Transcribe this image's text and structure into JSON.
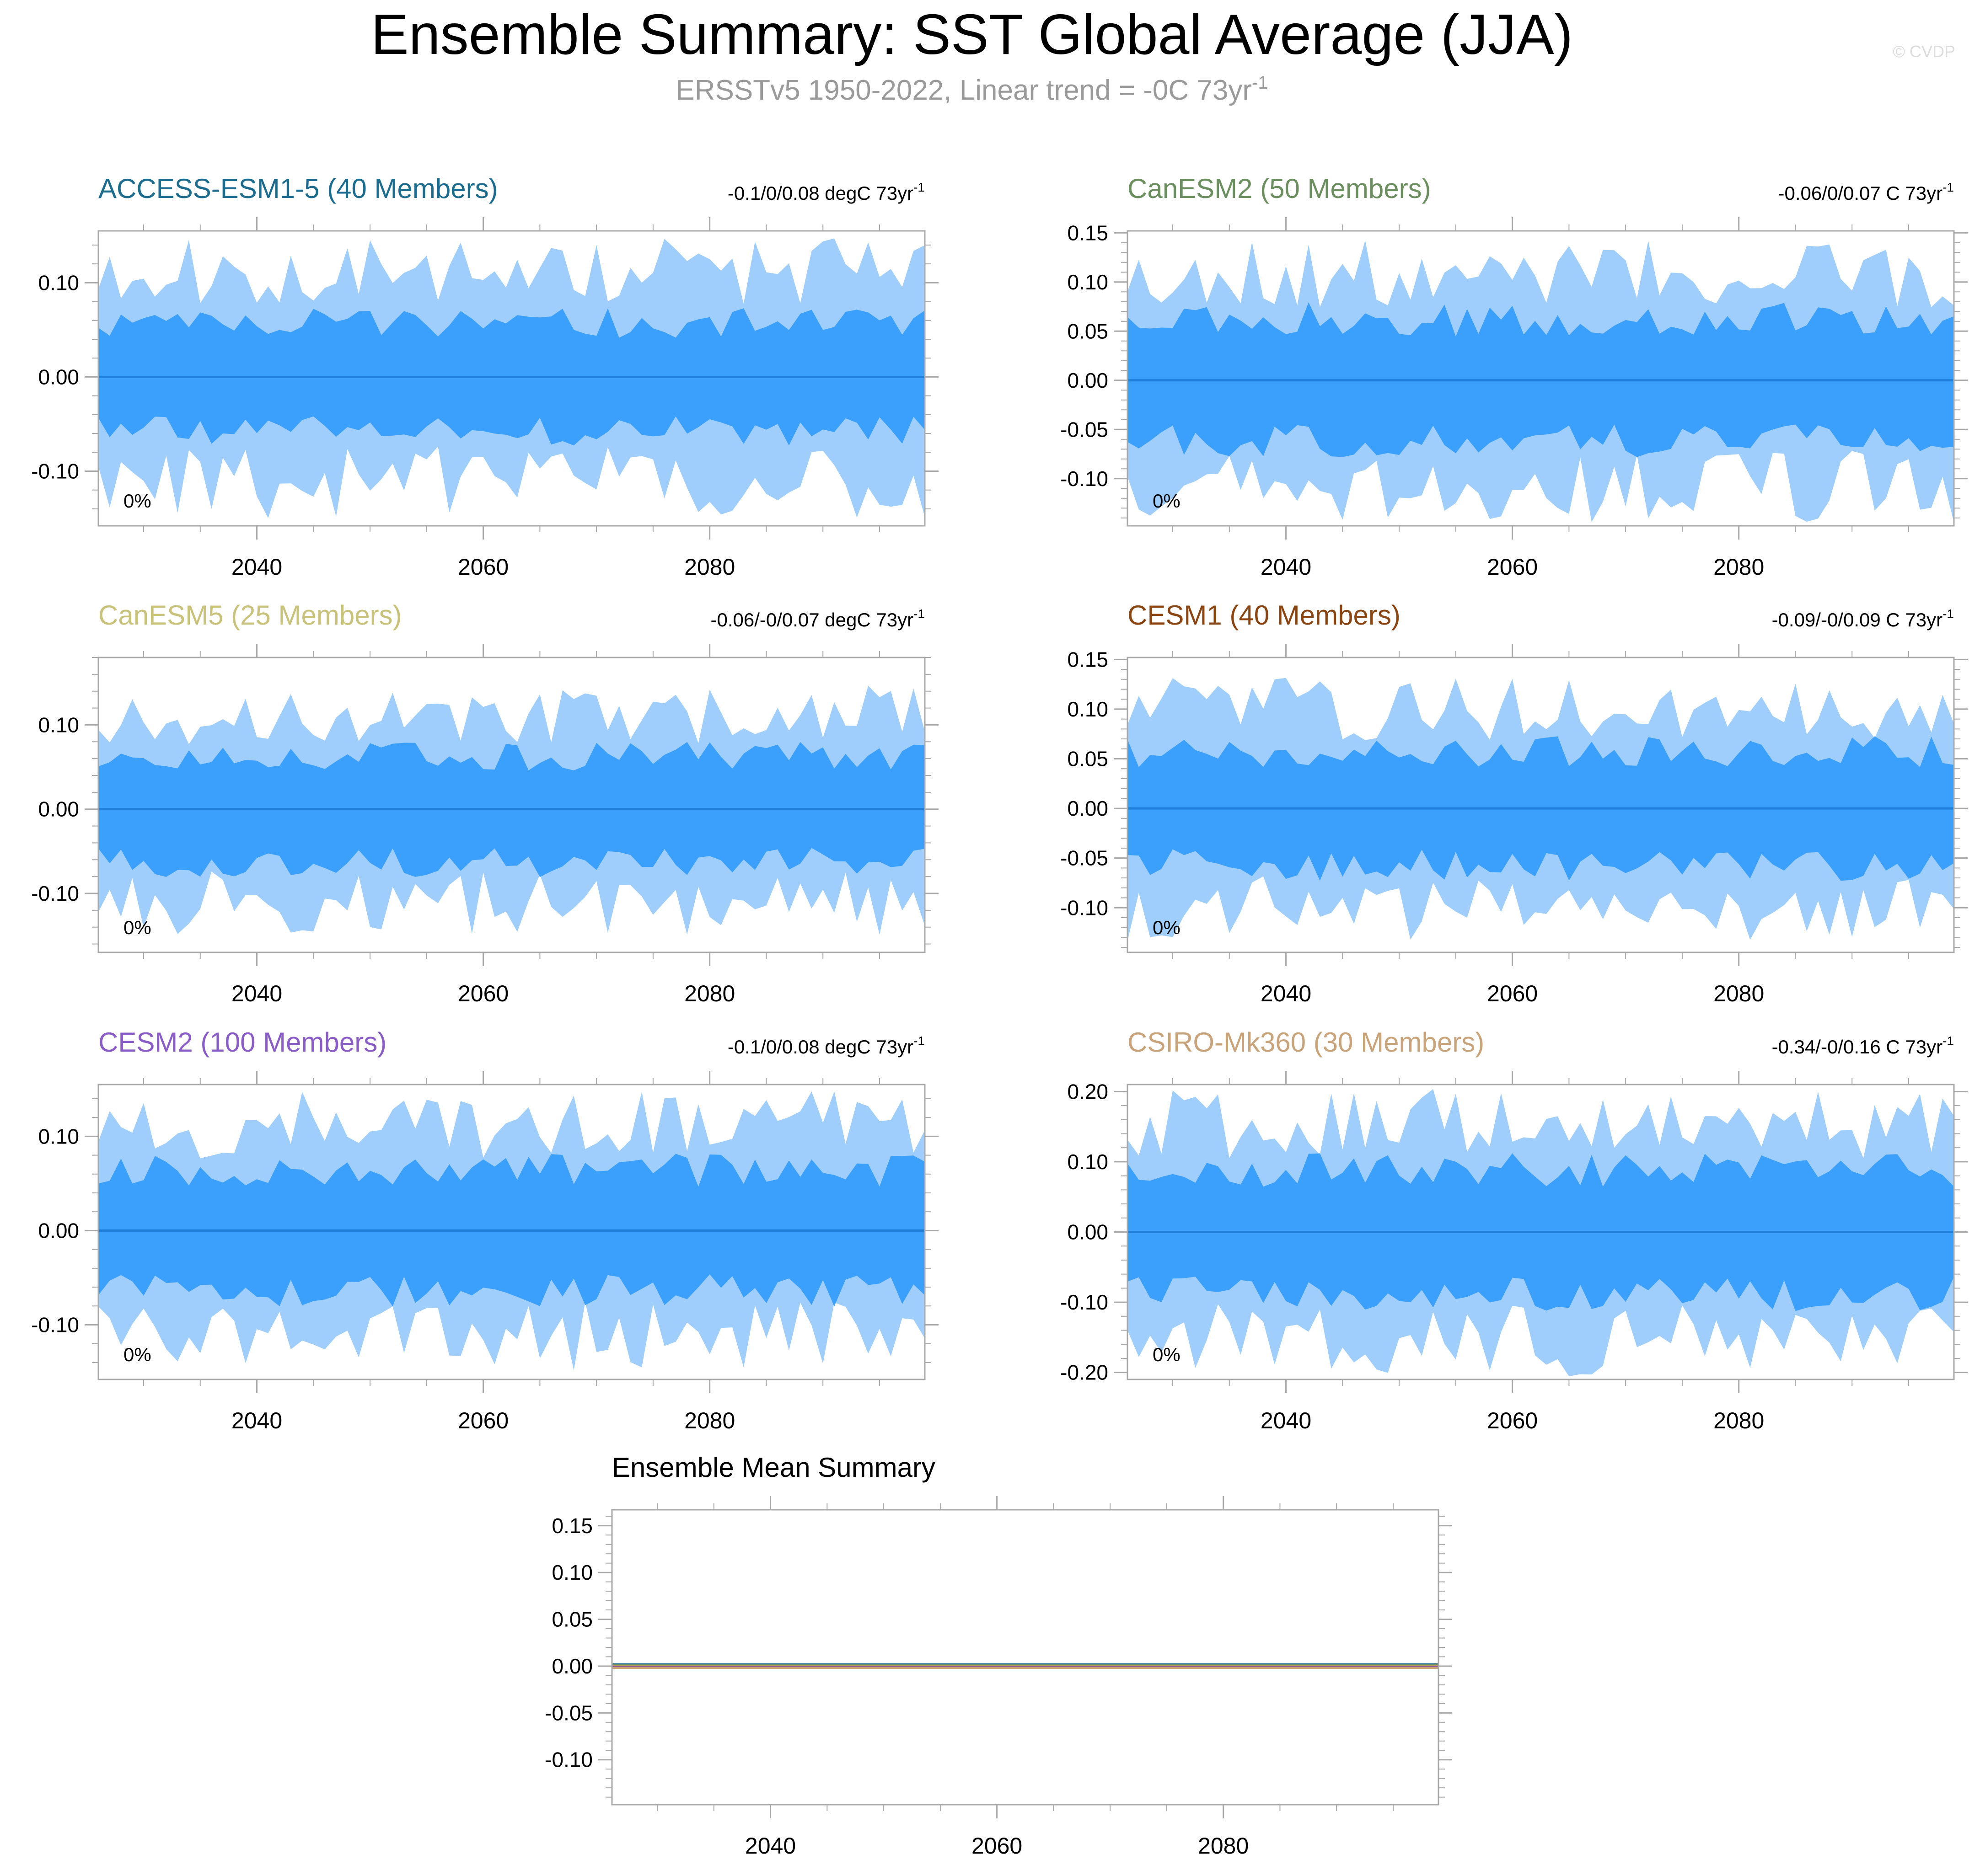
{
  "title": "Ensemble Summary: SST Global Average (JJA)",
  "subtitle_main": "ERSSTv5 1950-2022, Linear trend = -0C 73yr",
  "subtitle_sup": "-1",
  "watermark": "© CVDP",
  "colors": {
    "band_outer": "#9fcefc",
    "band_inner": "#3ba0fb",
    "mean_line": "#1f7fd8",
    "frame": "#a8a8a8",
    "text": "#000000"
  },
  "chart_data": [
    {
      "type": "area",
      "title": "ACCESS-ESM1-5 (40 Members)",
      "title_color": "#1b6c8e",
      "trend_text": "-0.1/0/0.08 degC 73yr",
      "trend_sup": "-1",
      "pct_label": "0%",
      "x_range": [
        2026,
        2099
      ],
      "ylim": [
        -0.158,
        0.155
      ],
      "yticks": [
        -0.1,
        0.0,
        0.1
      ],
      "ytick_labels": [
        "-0.10",
        "0.00",
        "0.10"
      ],
      "xticks": [
        2040,
        2060,
        2080
      ],
      "xtick_labels": [
        "2040",
        "2060",
        "2080"
      ],
      "mean_value": 0.0,
      "outer_amp": 0.112,
      "inner_amp": 0.057,
      "seed": 11
    },
    {
      "type": "area",
      "title": "CanESM2 (50 Members)",
      "title_color": "#6b8f5e",
      "trend_text": "-0.06/0/0.07 C 73yr",
      "trend_sup": "-1",
      "pct_label": "0%",
      "x_range": [
        2026,
        2099
      ],
      "ylim": [
        -0.148,
        0.152
      ],
      "yticks": [
        -0.1,
        -0.05,
        0.0,
        0.05,
        0.1,
        0.15
      ],
      "ytick_labels": [
        "-0.10",
        "-0.05",
        "0.00",
        "0.05",
        "0.10",
        "0.15"
      ],
      "xticks": [
        2040,
        2060,
        2080
      ],
      "xtick_labels": [
        "2040",
        "2060",
        "2080"
      ],
      "mean_value": 0.0,
      "outer_amp": 0.108,
      "inner_amp": 0.062,
      "seed": 23
    },
    {
      "type": "area",
      "title": "CanESM5 (25 Members)",
      "title_color": "#c9c27a",
      "trend_text": "-0.06/-0/0.07 degC 73yr",
      "trend_sup": "-1",
      "pct_label": "0%",
      "x_range": [
        2026,
        2099
      ],
      "ylim": [
        -0.17,
        0.18
      ],
      "yticks": [
        -0.1,
        0.0,
        0.1
      ],
      "ytick_labels": [
        "-0.10",
        "0.00",
        "0.10"
      ],
      "xticks": [
        2040,
        2060,
        2080
      ],
      "xtick_labels": [
        "2040",
        "2060",
        "2080"
      ],
      "mean_value": 0.0,
      "outer_amp": 0.112,
      "inner_amp": 0.063,
      "seed": 37
    },
    {
      "type": "area",
      "title": "CESM1 (40 Members)",
      "title_color": "#8b4513",
      "trend_text": "-0.09/-0/0.09 C 73yr",
      "trend_sup": "-1",
      "pct_label": "0%",
      "x_range": [
        2026,
        2099
      ],
      "ylim": [
        -0.145,
        0.152
      ],
      "yticks": [
        -0.1,
        -0.05,
        0.0,
        0.05,
        0.1,
        0.15
      ],
      "ytick_labels": [
        "-0.10",
        "-0.05",
        "0.00",
        "0.05",
        "0.10",
        "0.15"
      ],
      "xticks": [
        2040,
        2060,
        2080
      ],
      "xtick_labels": [
        "2040",
        "2060",
        "2080"
      ],
      "mean_value": 0.0,
      "outer_amp": 0.1,
      "inner_amp": 0.057,
      "seed": 41
    },
    {
      "type": "area",
      "title": "CESM2 (100 Members)",
      "title_color": "#8a5cc8",
      "trend_text": "-0.1/0/0.08 degC 73yr",
      "trend_sup": "-1",
      "pct_label": "0%",
      "x_range": [
        2026,
        2099
      ],
      "ylim": [
        -0.158,
        0.155
      ],
      "yticks": [
        -0.1,
        0.0,
        0.1
      ],
      "ytick_labels": [
        "-0.10",
        "0.00",
        "0.10"
      ],
      "xticks": [
        2040,
        2060,
        2080
      ],
      "xtick_labels": [
        "2040",
        "2060",
        "2080"
      ],
      "mean_value": 0.0,
      "outer_amp": 0.112,
      "inner_amp": 0.064,
      "seed": 53
    },
    {
      "type": "area",
      "title": "CSIRO-Mk360 (30 Members)",
      "title_color": "#c9a47a",
      "trend_text": "-0.34/-0/0.16 C 73yr",
      "trend_sup": "-1",
      "pct_label": "0%",
      "x_range": [
        2026,
        2099
      ],
      "ylim": [
        -0.21,
        0.21
      ],
      "yticks": [
        -0.2,
        -0.1,
        0.0,
        0.1,
        0.2
      ],
      "ytick_labels": [
        "-0.20",
        "-0.10",
        "0.00",
        "0.10",
        "0.20"
      ],
      "xticks": [
        2040,
        2060,
        2080
      ],
      "xtick_labels": [
        "2040",
        "2060",
        "2080"
      ],
      "mean_value": 0.0,
      "outer_amp": 0.155,
      "inner_amp": 0.088,
      "seed": 67
    },
    {
      "type": "line",
      "title": "Ensemble Mean Summary",
      "title_color": "#000000",
      "x_range": [
        2026,
        2099
      ],
      "ylim": [
        -0.148,
        0.167
      ],
      "yticks": [
        -0.1,
        -0.05,
        0.0,
        0.05,
        0.1,
        0.15
      ],
      "ytick_labels": [
        "-0.10",
        "-0.05",
        "0.00",
        "0.05",
        "0.10",
        "0.15"
      ],
      "xticks": [
        2040,
        2060,
        2080
      ],
      "xtick_labels": [
        "2040",
        "2060",
        "2080"
      ],
      "series": [
        {
          "color": "#1b6c8e",
          "value": 0.0
        },
        {
          "color": "#6b8f5e",
          "value": 0.0
        },
        {
          "color": "#c9c27a",
          "value": 0.0
        },
        {
          "color": "#8b4513",
          "value": 0.0
        },
        {
          "color": "#8a5cc8",
          "value": 0.0
        },
        {
          "color": "#c9a47a",
          "value": 0.0
        }
      ]
    }
  ]
}
